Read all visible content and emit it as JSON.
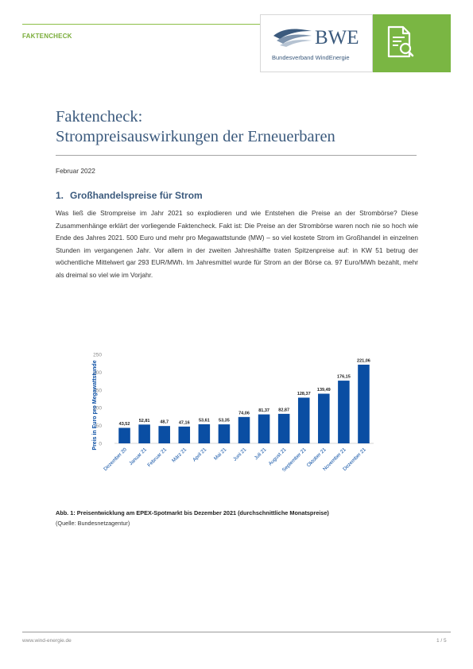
{
  "header": {
    "label": "FAKTENCHECK",
    "logo_text": "BWE",
    "logo_subtitle": "Bundesverband WindEnergie",
    "icon": "document-search-icon"
  },
  "document": {
    "title_line1": "Faktencheck:",
    "title_line2": "Strompreisauswirkungen der Erneuerbaren",
    "date": "Februar 2022",
    "section_number": "1.",
    "section_title": "Großhandelspreise für Strom",
    "paragraph": "Was ließ die Strompreise im Jahr 2021 so explodieren und wie Entstehen die Preise an der Strombörse? Diese Zusammenhänge erklärt der vorliegende Faktencheck. Fakt ist: Die Preise an der Strombörse waren noch nie so hoch wie Ende des Jahres 2021. 500 Euro und mehr pro Megawattstunde (MW) – so viel kostete Strom im Großhandel in einzelnen Stunden im vergangenen Jahr. Vor allem in der zweiten Jahreshälfte traten Spitzenpreise auf: in KW 51 betrug der wöchentliche Mittelwert gar 293 EUR/MWh. Im Jahresmittel wurde für Strom an der Börse ca. 97 Euro/MWh bezahlt, mehr als dreimal so viel wie im Vorjahr.",
    "figure_caption": "Abb. 1: Preisentwicklung am EPEX-Spotmarkt bis Dezember 2021 (durchschnittliche Monatspreise)",
    "figure_source": "(Quelle: Bundesnetzagentur)"
  },
  "chart_data": {
    "type": "bar",
    "categories": [
      "Dezember 20",
      "Januar 21",
      "Februar 21",
      "März 21",
      "April 21",
      "Mai 21",
      "Juni 21",
      "Juli 21",
      "August 21",
      "September 21",
      "Oktober 21",
      "November 21",
      "Dezember 21"
    ],
    "values": [
      43.52,
      52.81,
      48.7,
      47.16,
      53.61,
      53.35,
      74.06,
      81.37,
      82.87,
      128.37,
      139.49,
      176.15,
      221.06
    ],
    "value_labels": [
      "43,52",
      "52,81",
      "48,7",
      "47,16",
      "53,61",
      "53,35",
      "74,06",
      "81,37",
      "82,87",
      "128,37",
      "139,49",
      "176,15",
      "221,06"
    ],
    "ylabel": "Preis in Euro pro Megawattstunde",
    "xlabel": "",
    "title": "",
    "ylim": [
      0,
      250
    ],
    "yticks": [
      0,
      50,
      100,
      150,
      200,
      250
    ],
    "grid": false,
    "bar_color": "#0a4ea3"
  },
  "footer": {
    "url": "www.wind-energie.de",
    "page": "1 / 5"
  },
  "colors": {
    "accent_green": "#7ab643",
    "brand_blue": "#3b5a7d"
  }
}
